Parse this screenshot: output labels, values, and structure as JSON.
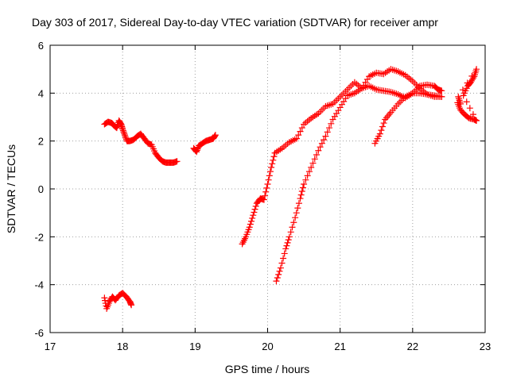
{
  "chart_data": {
    "type": "scatter",
    "title": "Day 303 of 2017, Sidereal Day-to-day VTEC variation (SDTVAR) for receiver ampr",
    "xlabel": "GPS time / hours",
    "ylabel": "SDTVAR / TECUs",
    "xlim": [
      17,
      23
    ],
    "ylim": [
      -6,
      6
    ],
    "xticks": [
      "17",
      "18",
      "19",
      "20",
      "21",
      "22",
      "23"
    ],
    "yticks": [
      "-6",
      "-4",
      "-2",
      "0",
      "2",
      "4",
      "6"
    ],
    "grid": true,
    "marker": "+",
    "color": "#ff0000",
    "series": [
      {
        "name": "track-1",
        "points": [
          [
            17.75,
            2.7
          ],
          [
            17.8,
            2.8
          ],
          [
            17.85,
            2.75
          ],
          [
            17.88,
            2.65
          ],
          [
            17.92,
            2.55
          ],
          [
            17.95,
            2.85
          ],
          [
            17.98,
            2.7
          ],
          [
            18.0,
            2.5
          ],
          [
            18.03,
            2.25
          ],
          [
            18.06,
            2.0
          ],
          [
            18.1,
            2.0
          ],
          [
            18.15,
            2.05
          ],
          [
            18.2,
            2.2
          ],
          [
            18.25,
            2.3
          ],
          [
            18.3,
            2.1
          ],
          [
            18.35,
            1.9
          ],
          [
            18.4,
            1.85
          ],
          [
            18.45,
            1.5
          ],
          [
            18.5,
            1.3
          ],
          [
            18.55,
            1.15
          ],
          [
            18.6,
            1.1
          ],
          [
            18.65,
            1.1
          ],
          [
            18.7,
            1.1
          ],
          [
            18.75,
            1.15
          ]
        ]
      },
      {
        "name": "track-2",
        "points": [
          [
            18.98,
            1.7
          ],
          [
            19.02,
            1.55
          ],
          [
            19.05,
            1.8
          ],
          [
            19.1,
            1.9
          ],
          [
            19.15,
            2.0
          ],
          [
            19.2,
            2.05
          ],
          [
            19.25,
            2.1
          ],
          [
            19.28,
            2.25
          ]
        ]
      },
      {
        "name": "track-3",
        "points": [
          [
            17.75,
            -4.55
          ],
          [
            17.78,
            -5.0
          ],
          [
            17.82,
            -4.7
          ],
          [
            17.86,
            -4.5
          ],
          [
            17.9,
            -4.65
          ],
          [
            17.95,
            -4.45
          ],
          [
            18.0,
            -4.35
          ],
          [
            18.05,
            -4.5
          ],
          [
            18.1,
            -4.7
          ],
          [
            18.12,
            -4.85
          ]
        ]
      },
      {
        "name": "track-4",
        "points": [
          [
            19.65,
            -2.3
          ],
          [
            19.7,
            -2.0
          ],
          [
            19.75,
            -1.6
          ],
          [
            19.8,
            -1.1
          ],
          [
            19.85,
            -0.6
          ],
          [
            19.9,
            -0.4
          ],
          [
            19.95,
            -0.45
          ],
          [
            20.0,
            0.2
          ],
          [
            20.05,
            0.9
          ],
          [
            20.1,
            1.5
          ],
          [
            20.2,
            1.7
          ],
          [
            20.3,
            1.95
          ],
          [
            20.4,
            2.1
          ],
          [
            20.5,
            2.7
          ],
          [
            20.6,
            2.95
          ],
          [
            20.7,
            3.15
          ],
          [
            20.8,
            3.45
          ],
          [
            20.9,
            3.55
          ],
          [
            21.0,
            3.85
          ],
          [
            21.1,
            4.15
          ],
          [
            21.2,
            4.45
          ],
          [
            21.3,
            4.2
          ],
          [
            21.4,
            4.7
          ],
          [
            21.5,
            4.85
          ],
          [
            21.6,
            4.8
          ],
          [
            21.7,
            5.0
          ],
          [
            21.8,
            4.9
          ],
          [
            21.9,
            4.75
          ],
          [
            22.0,
            4.5
          ],
          [
            22.1,
            4.2
          ],
          [
            22.2,
            3.95
          ],
          [
            22.3,
            3.85
          ],
          [
            22.4,
            3.85
          ]
        ]
      },
      {
        "name": "track-5",
        "points": [
          [
            20.12,
            -3.85
          ],
          [
            20.18,
            -3.3
          ],
          [
            20.25,
            -2.5
          ],
          [
            20.3,
            -2.0
          ],
          [
            20.38,
            -1.2
          ],
          [
            20.45,
            -0.4
          ],
          [
            20.5,
            0.2
          ],
          [
            20.6,
            0.9
          ],
          [
            20.7,
            1.6
          ],
          [
            20.8,
            2.2
          ],
          [
            20.9,
            2.9
          ],
          [
            21.0,
            3.4
          ],
          [
            21.1,
            3.9
          ],
          [
            21.2,
            4.0
          ],
          [
            21.3,
            4.2
          ],
          [
            21.4,
            4.3
          ],
          [
            21.5,
            4.15
          ],
          [
            21.6,
            4.1
          ],
          [
            21.7,
            4.05
          ],
          [
            21.8,
            3.95
          ],
          [
            21.9,
            3.8
          ],
          [
            22.0,
            4.0
          ],
          [
            22.1,
            4.0
          ],
          [
            22.2,
            3.95
          ],
          [
            22.3,
            3.9
          ],
          [
            22.4,
            3.85
          ]
        ]
      },
      {
        "name": "track-6",
        "points": [
          [
            21.48,
            1.9
          ],
          [
            21.55,
            2.3
          ],
          [
            21.62,
            2.9
          ],
          [
            21.7,
            3.2
          ],
          [
            21.8,
            3.55
          ],
          [
            21.9,
            3.85
          ],
          [
            22.0,
            4.0
          ],
          [
            22.1,
            4.3
          ],
          [
            22.2,
            4.35
          ],
          [
            22.3,
            4.3
          ],
          [
            22.35,
            4.15
          ],
          [
            22.4,
            4.1
          ]
        ]
      },
      {
        "name": "track-7",
        "points": [
          [
            22.62,
            3.6
          ],
          [
            22.66,
            3.3
          ],
          [
            22.72,
            3.1
          ],
          [
            22.78,
            2.95
          ],
          [
            22.85,
            2.9
          ],
          [
            22.88,
            2.85
          ],
          [
            22.7,
            3.9
          ],
          [
            22.76,
            4.3
          ],
          [
            22.8,
            4.45
          ],
          [
            22.85,
            4.7
          ],
          [
            22.88,
            5.0
          ],
          [
            22.63,
            3.85
          ],
          [
            22.66,
            3.55
          ]
        ]
      }
    ]
  }
}
